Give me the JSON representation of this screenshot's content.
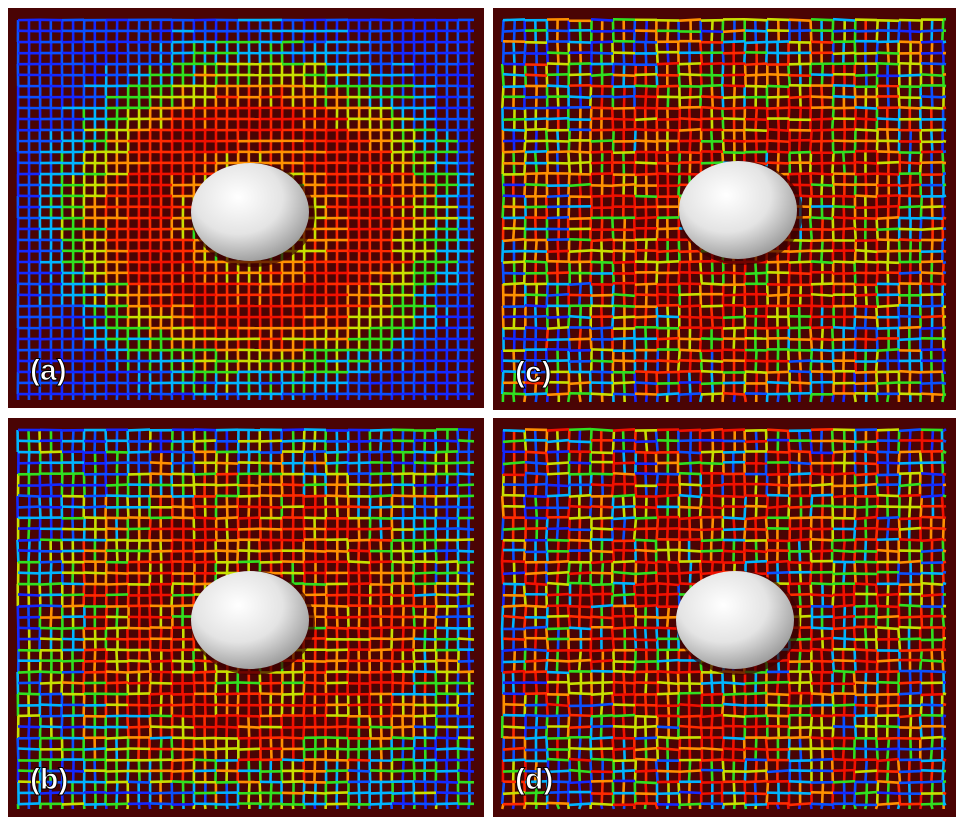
{
  "panels": [
    {
      "label": "(a)"
    },
    {
      "label": "(c)"
    },
    {
      "label": "(b)"
    },
    {
      "label": "(d)"
    }
  ]
}
